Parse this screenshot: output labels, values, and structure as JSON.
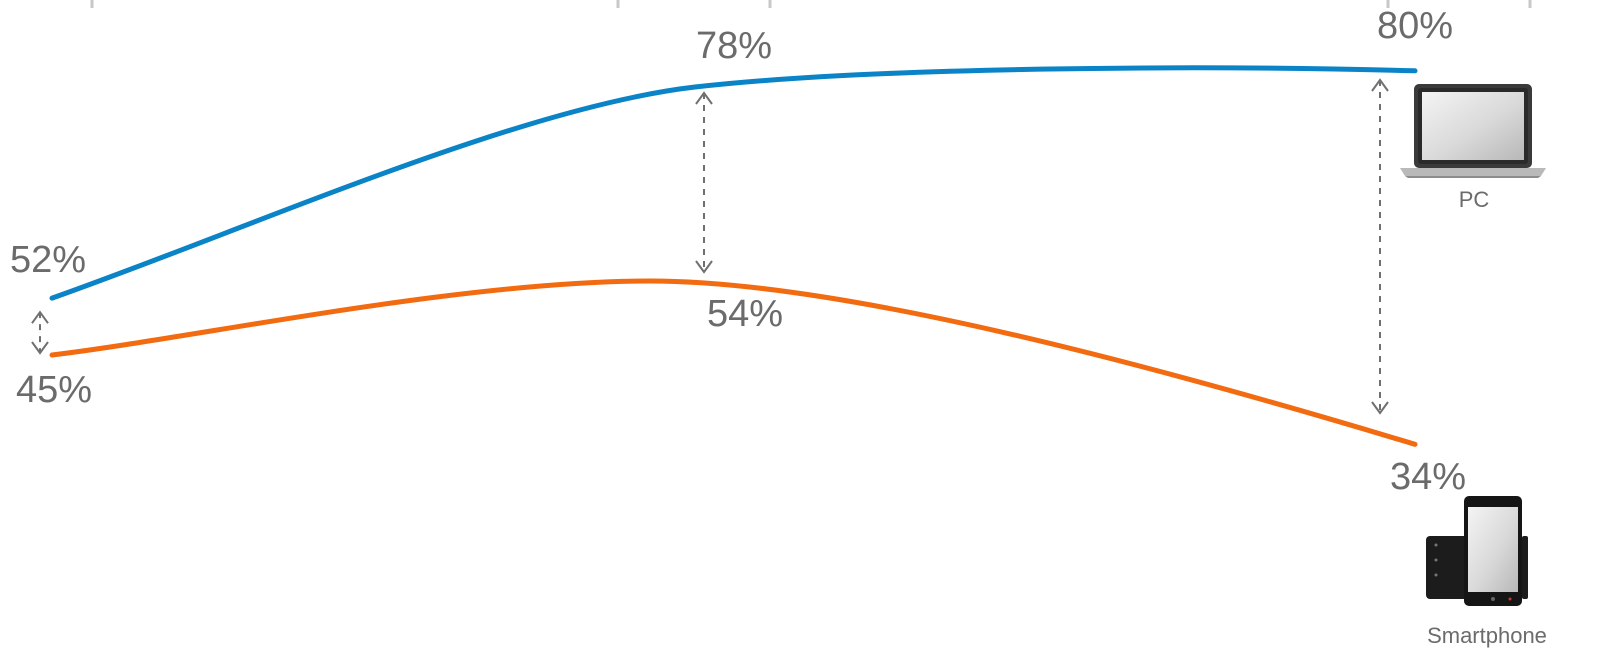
{
  "chart_data": {
    "type": "line",
    "x": [
      0,
      1,
      2
    ],
    "series": [
      {
        "name": "PC",
        "color": "#0a84c6",
        "values": [
          52,
          78,
          80
        ],
        "labels": [
          "52%",
          "78%",
          "80%"
        ]
      },
      {
        "name": "Smartphone",
        "color": "#f26b10",
        "values": [
          45,
          54,
          34
        ],
        "labels": [
          "45%",
          "54%",
          "34%"
        ]
      }
    ],
    "gap_arrows_at": [
      0,
      1,
      2
    ],
    "legend": [
      {
        "label": "PC",
        "icon": "laptop-icon"
      },
      {
        "label": "Smartphone",
        "icon": "smartphone-icon"
      }
    ],
    "title": "",
    "xlabel": "",
    "ylabel": ""
  }
}
